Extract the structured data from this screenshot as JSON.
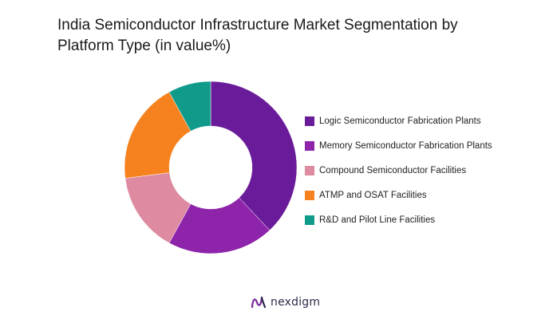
{
  "chart_data": {
    "type": "pie",
    "variant": "donut",
    "title": "India Semiconductor Infrastructure Market Segmentation by Platform Type (in value%)",
    "categories": [
      "Logic Semiconductor Fabrication Plants",
      "Memory Semiconductor Fabrication Plants",
      "Compound Semiconductor Facilities",
      "ATMP and OSAT Facilities",
      "R&D and Pilot Line Facilities"
    ],
    "values": [
      38,
      20,
      15,
      19,
      8
    ],
    "colors": [
      "#6a1b9a",
      "#8e24aa",
      "#de8aa0",
      "#f5821f",
      "#0f9a8a"
    ],
    "start_angle_deg": 0,
    "direction": "clockwise",
    "legend_position": "right"
  },
  "brand": {
    "name": "nexdigm",
    "icon": "nexdigm-logo-icon"
  }
}
